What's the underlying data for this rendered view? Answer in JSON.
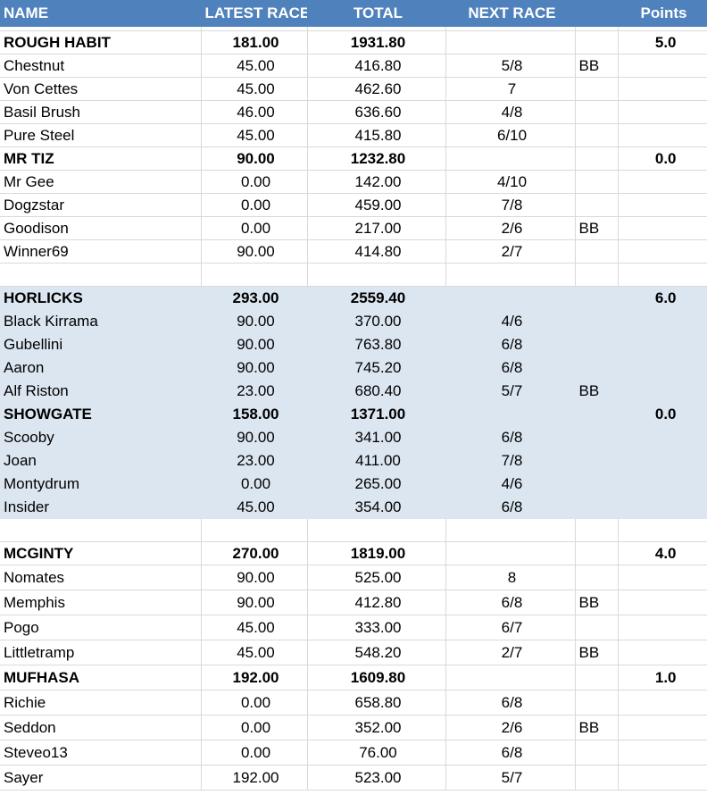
{
  "headers": {
    "name": "NAME",
    "latest": "LATEST RACE",
    "total": "TOTAL",
    "next": "NEXT RACE",
    "bb": "",
    "points": "Points"
  },
  "colors": {
    "header_bg": "#4f81bd",
    "header_text": "#ffffff",
    "shaded_group": "#dce6f1",
    "grid": "#d9d9d9"
  },
  "rows": [
    {
      "kind": "blank",
      "name": "",
      "latest": "",
      "total": "",
      "next": "",
      "bb": "",
      "points": ""
    },
    {
      "kind": "team",
      "name": "ROUGH HABIT",
      "latest": "181.00",
      "total": "1931.80",
      "next": "",
      "bb": "",
      "points": "5.0"
    },
    {
      "kind": "player",
      "name": "Chestnut",
      "latest": "45.00",
      "total": "416.80",
      "next": "5/8",
      "bb": "BB",
      "points": ""
    },
    {
      "kind": "player",
      "name": "Von Cettes",
      "latest": "45.00",
      "total": "462.60",
      "next": "7",
      "bb": "",
      "points": ""
    },
    {
      "kind": "player",
      "name": "Basil Brush",
      "latest": "46.00",
      "total": "636.60",
      "next": "4/8",
      "bb": "",
      "points": ""
    },
    {
      "kind": "player",
      "name": "Pure Steel",
      "latest": "45.00",
      "total": "415.80",
      "next": "6/10",
      "bb": "",
      "points": ""
    },
    {
      "kind": "team",
      "name": "MR TIZ",
      "latest": "90.00",
      "total": "1232.80",
      "next": "",
      "bb": "",
      "points": "0.0"
    },
    {
      "kind": "player",
      "name": "Mr Gee",
      "latest": "0.00",
      "total": "142.00",
      "next": "4/10",
      "bb": "",
      "points": ""
    },
    {
      "kind": "player",
      "name": "Dogzstar",
      "latest": "0.00",
      "total": "459.00",
      "next": "7/8",
      "bb": "",
      "points": ""
    },
    {
      "kind": "player",
      "name": "Goodison",
      "latest": "0.00",
      "total": "217.00",
      "next": "2/6",
      "bb": "BB",
      "points": ""
    },
    {
      "kind": "player",
      "name": "Winner69",
      "latest": "90.00",
      "total": "414.80",
      "next": "2/7",
      "bb": "",
      "points": ""
    },
    {
      "kind": "spacer",
      "name": "",
      "latest": "",
      "total": "",
      "next": "",
      "bb": "",
      "points": ""
    },
    {
      "kind": "team",
      "shaded": true,
      "name": "HORLICKS",
      "latest": "293.00",
      "total": "2559.40",
      "next": "",
      "bb": "",
      "points": "6.0"
    },
    {
      "kind": "player",
      "shaded": true,
      "name": "Black Kirrama",
      "latest": "90.00",
      "total": "370.00",
      "next": "4/6",
      "bb": "",
      "points": ""
    },
    {
      "kind": "player",
      "shaded": true,
      "name": "Gubellini",
      "latest": "90.00",
      "total": "763.80",
      "next": "6/8",
      "bb": "",
      "points": ""
    },
    {
      "kind": "player",
      "shaded": true,
      "name": "Aaron",
      "latest": "90.00",
      "total": "745.20",
      "next": "6/8",
      "bb": "",
      "points": ""
    },
    {
      "kind": "player",
      "shaded": true,
      "name": "Alf Riston",
      "latest": "23.00",
      "total": "680.40",
      "next": "5/7",
      "bb": "BB",
      "points": ""
    },
    {
      "kind": "team",
      "shaded": true,
      "name": "SHOWGATE",
      "latest": "158.00",
      "total": "1371.00",
      "next": "",
      "bb": "",
      "points": "0.0"
    },
    {
      "kind": "player",
      "shaded": true,
      "name": "Scooby",
      "latest": "90.00",
      "total": "341.00",
      "next": "6/8",
      "bb": "",
      "points": ""
    },
    {
      "kind": "player",
      "shaded": true,
      "name": "Joan",
      "latest": "23.00",
      "total": "411.00",
      "next": "7/8",
      "bb": "",
      "points": ""
    },
    {
      "kind": "player",
      "shaded": true,
      "name": "Montydrum",
      "latest": "0.00",
      "total": "265.00",
      "next": "4/6",
      "bb": "",
      "points": ""
    },
    {
      "kind": "player",
      "shaded": true,
      "name": "Insider",
      "latest": "45.00",
      "total": "354.00",
      "next": "6/8",
      "bb": "",
      "points": ""
    },
    {
      "kind": "spacer",
      "name": "",
      "latest": "",
      "total": "",
      "next": "",
      "bb": "",
      "points": ""
    },
    {
      "kind": "team",
      "name": "MCGINTY",
      "latest": "270.00",
      "total": "1819.00",
      "next": "",
      "bb": "",
      "points": "4.0"
    },
    {
      "kind": "player",
      "name": "Nomates",
      "latest": "90.00",
      "total": "525.00",
      "next": "8",
      "bb": "",
      "points": ""
    },
    {
      "kind": "player",
      "name": "Memphis",
      "latest": "90.00",
      "total": "412.80",
      "next": "6/8",
      "bb": "BB",
      "points": ""
    },
    {
      "kind": "player",
      "name": "Pogo",
      "latest": "45.00",
      "total": "333.00",
      "next": "6/7",
      "bb": "",
      "points": ""
    },
    {
      "kind": "player",
      "name": "Littletramp",
      "latest": "45.00",
      "total": "548.20",
      "next": "2/7",
      "bb": "BB",
      "points": ""
    },
    {
      "kind": "team",
      "name": "MUFHASA",
      "latest": "192.00",
      "total": "1609.80",
      "next": "",
      "bb": "",
      "points": "1.0"
    },
    {
      "kind": "player",
      "name": "Richie",
      "latest": "0.00",
      "total": "658.80",
      "next": "6/8",
      "bb": "",
      "points": ""
    },
    {
      "kind": "player",
      "name": "Seddon",
      "latest": "0.00",
      "total": "352.00",
      "next": "2/6",
      "bb": "BB",
      "points": ""
    },
    {
      "kind": "player",
      "name": "Steveo13",
      "latest": "0.00",
      "total": "76.00",
      "next": "6/8",
      "bb": "",
      "points": ""
    },
    {
      "kind": "player",
      "name": "Sayer",
      "latest": "192.00",
      "total": "523.00",
      "next": "5/7",
      "bb": "",
      "points": ""
    }
  ]
}
